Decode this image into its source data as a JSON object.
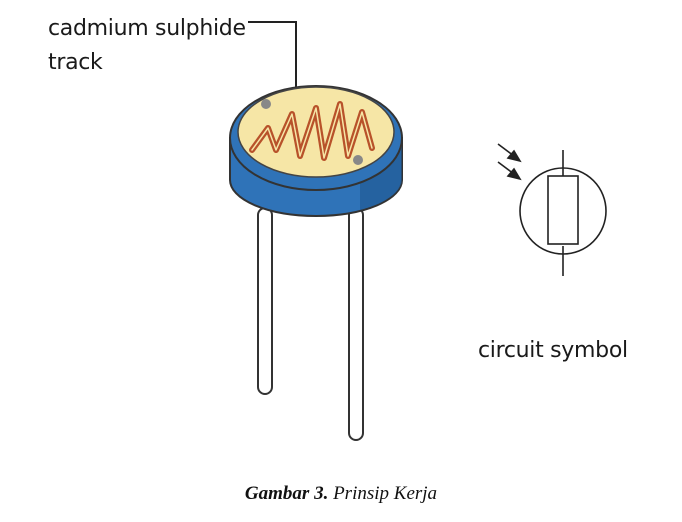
{
  "labels": {
    "track_line1": "cadmium sulphide",
    "track_line2": "track",
    "circuit_symbol": "circuit symbol"
  },
  "caption": {
    "prefix": "Gambar 3.",
    "title": "Prinsip Kerja"
  },
  "colors": {
    "body_blue": "#2f73b8",
    "body_blue_dark": "#1f5690",
    "face": "#f6e6a6",
    "track": "#b8522a",
    "leads": "#ffffff",
    "outline": "#333333"
  },
  "icons": [
    "light-arrows-icon",
    "ldr-circuit-symbol-icon"
  ]
}
